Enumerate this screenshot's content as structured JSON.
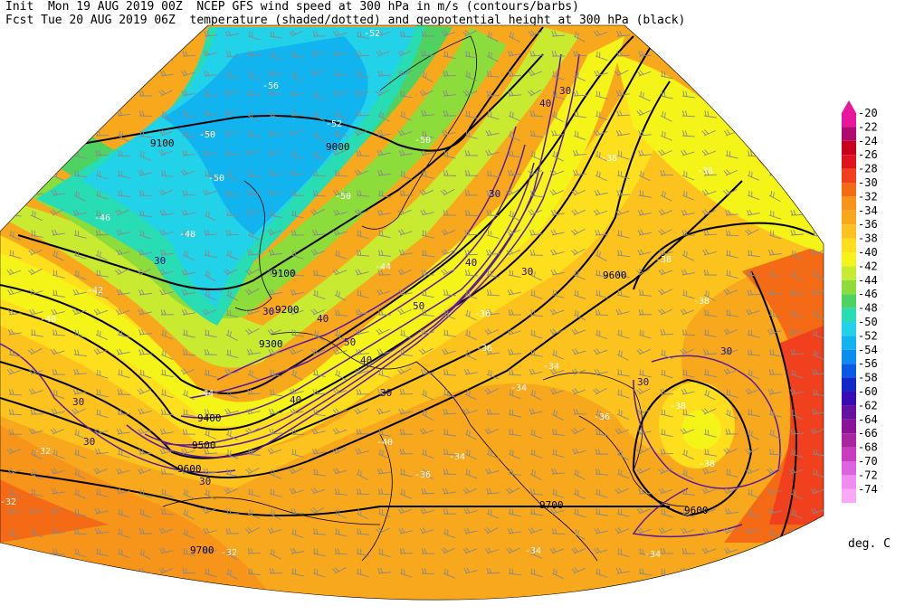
{
  "header": {
    "line1": "Init  Mon 19 AUG 2019 00Z  NCEP GFS wind speed at 300 hPa in m/s (contours/barbs)",
    "line2": "Fcst Tue 20 AUG 2019 06Z  temperature (shaded/dotted) and geopotential height at 300 hPa (black)"
  },
  "colorbar": {
    "units": "deg. C",
    "levels": [
      {
        "label": "-20",
        "color": "#e8169c"
      },
      {
        "label": "-22",
        "color": "#b00a6e"
      },
      {
        "label": "-24",
        "color": "#c8001e"
      },
      {
        "label": "-26",
        "color": "#e0141c"
      },
      {
        "label": "-28",
        "color": "#f0401e"
      },
      {
        "label": "-30",
        "color": "#f56a14"
      },
      {
        "label": "-32",
        "color": "#f7941a"
      },
      {
        "label": "-34",
        "color": "#f8a81c"
      },
      {
        "label": "-36",
        "color": "#fcc21e"
      },
      {
        "label": "-38",
        "color": "#fedf1e"
      },
      {
        "label": "-40",
        "color": "#f4f418"
      },
      {
        "label": "-42",
        "color": "#c8ea30"
      },
      {
        "label": "-44",
        "color": "#8cdc3c"
      },
      {
        "label": "-46",
        "color": "#50d262"
      },
      {
        "label": "-48",
        "color": "#28dcb4"
      },
      {
        "label": "-50",
        "color": "#22d2e8"
      },
      {
        "label": "-52",
        "color": "#12b4f0"
      },
      {
        "label": "-54",
        "color": "#0a8cf0"
      },
      {
        "label": "-56",
        "color": "#0a5ae6"
      },
      {
        "label": "-58",
        "color": "#1428c8"
      },
      {
        "label": "-60",
        "color": "#3a0ab4"
      },
      {
        "label": "-62",
        "color": "#6410a0"
      },
      {
        "label": "-64",
        "color": "#8a1496"
      },
      {
        "label": "-66",
        "color": "#a8269e"
      },
      {
        "label": "-68",
        "color": "#c83cbe"
      },
      {
        "label": "-70",
        "color": "#dc64dc"
      },
      {
        "label": "-72",
        "color": "#f08cf0"
      },
      {
        "label": "-74",
        "color": "#f8aaf8"
      }
    ]
  },
  "height_labels": [
    "9100",
    "9000",
    "9100",
    "9200",
    "9300",
    "9400",
    "9500",
    "9600",
    "9600",
    "9700",
    "9700",
    "9600"
  ],
  "wind_labels": [
    "30",
    "30",
    "40",
    "30",
    "30",
    "30",
    "40",
    "40",
    "50",
    "50",
    "40",
    "30",
    "30",
    "30",
    "30",
    "40",
    "30",
    "30"
  ],
  "temp_labels": [
    "-52",
    "-56",
    "-52",
    "-50",
    "-50",
    "-50",
    "-50",
    "-48",
    "-46",
    "-44",
    "-42",
    "-40",
    "-38",
    "-38",
    "-38",
    "-36",
    "-34",
    "-34",
    "-34",
    "-34",
    "-32",
    "-32",
    "-32",
    "-36",
    "-38",
    "-44",
    "-36",
    "-34",
    "-36",
    "-38",
    "-40",
    "-38"
  ]
}
